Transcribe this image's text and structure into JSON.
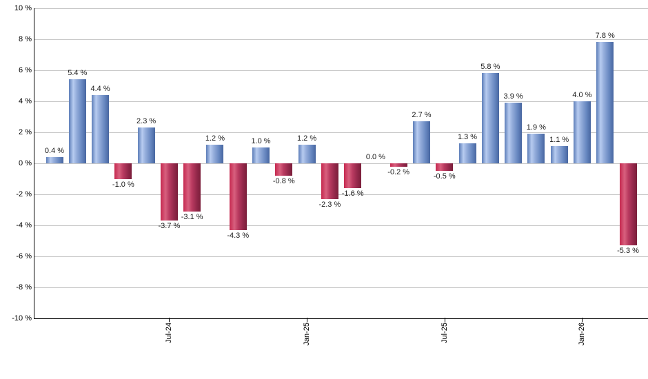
{
  "chart_data": {
    "type": "bar",
    "title": "",
    "unit": "%",
    "values": [
      0.4,
      5.4,
      4.4,
      -1.0,
      2.3,
      -3.7,
      -3.1,
      1.2,
      -4.3,
      1.0,
      -0.8,
      1.2,
      -2.3,
      -1.6,
      0.0,
      -0.2,
      2.7,
      -0.5,
      1.3,
      5.8,
      3.9,
      1.9,
      1.1,
      4.0,
      7.8,
      -5.3
    ],
    "value_labels": [
      "0.4 %",
      "5.4 %",
      "4.4 %",
      "-1.0 %",
      "2.3 %",
      "-3.7 %",
      "-3.1 %",
      "1.2 %",
      "-4.3 %",
      "1.0 %",
      "-0.8 %",
      "1.2 %",
      "-2.3 %",
      "-1.6 %",
      "0.0 %",
      "-0.2 %",
      "2.7 %",
      "-0.5 %",
      "1.3 %",
      "5.8 %",
      "3.9 %",
      "1.9 %",
      "1.1 %",
      "4.0 %",
      "7.8 %",
      "-5.3 %"
    ],
    "y_tick_labels": [
      "10 %",
      "8 %",
      "6 %",
      "4 %",
      "2 %",
      "0 %",
      "-2 %",
      "-4 %",
      "-6 %",
      "-8 %",
      "-10 %"
    ],
    "ylim": [
      -10,
      10
    ],
    "y_grid_step": 2,
    "grid": true,
    "legend": false,
    "x_tick_labels": [
      "Jul-24",
      "Jan-25",
      "Jul-25",
      "Jan-26"
    ],
    "x_tick_bar_indices": [
      5,
      11,
      17,
      23
    ],
    "colors": {
      "positive_bar": "#7b9ace",
      "positive_bar_highlight": "#b7cbf0",
      "positive_bar_edge": "#4766a0",
      "negative_bar": "#c02a52",
      "negative_bar_highlight": "#d8607e",
      "negative_bar_edge": "#7a1e3a",
      "gridline": "#c6c6c6",
      "axis": "#000000",
      "label_text": "#1a1a1a",
      "background": "#ffffff"
    }
  }
}
